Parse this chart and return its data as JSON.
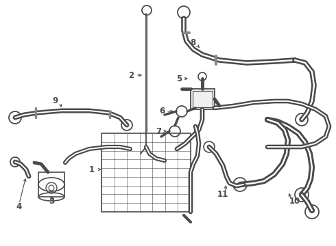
{
  "bg_color": "#ffffff",
  "line_color": "#4a4a4a",
  "label_color": "#000000",
  "label_fontsize": 8.5,
  "lw_hose": 2.2,
  "lw_thin": 1.0,
  "lw_grid": 0.4
}
